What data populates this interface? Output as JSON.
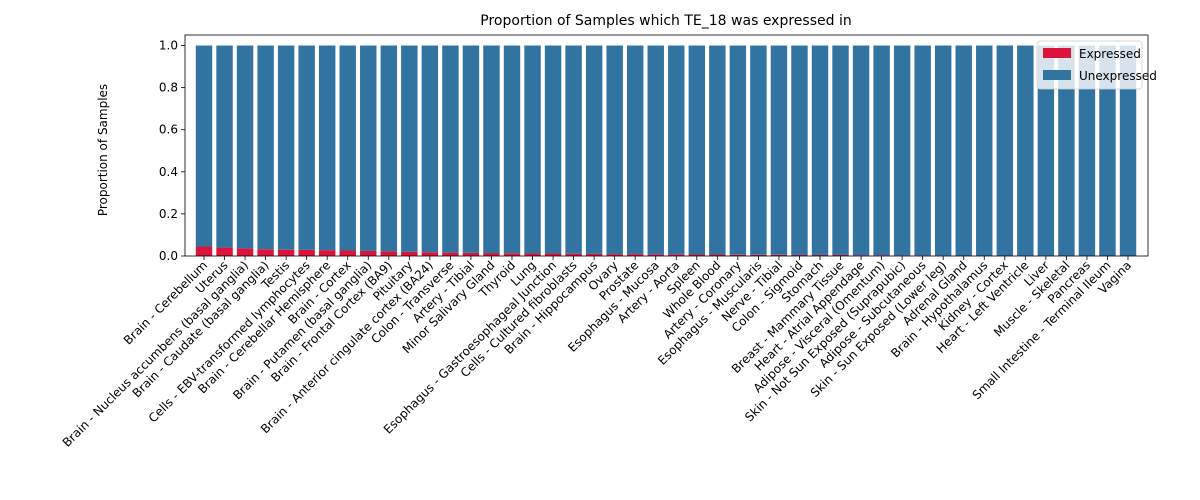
{
  "chart_data": {
    "type": "bar",
    "stacked": true,
    "title": "Proportion of Samples which TE_18 was expressed in",
    "xlabel": "",
    "ylabel": "Proportion of Samples",
    "ylim": [
      0,
      1.05
    ],
    "yticks": [
      "0.0",
      "0.2",
      "0.4",
      "0.6",
      "0.8",
      "1.0"
    ],
    "grid": false,
    "legend_position": "top-right",
    "categories": [
      "Brain - Cerebellum",
      "Uterus",
      "Brain - Nucleus accumbens (basal ganglia)",
      "Brain - Caudate (basal ganglia)",
      "Testis",
      "Cells - EBV-transformed lymphocytes",
      "Brain - Cerebellar Hemisphere",
      "Brain - Cortex",
      "Brain - Putamen (basal ganglia)",
      "Brain - Frontal Cortex (BA9)",
      "Pituitary",
      "Brain - Anterior cingulate cortex (BA24)",
      "Colon - Transverse",
      "Artery - Tibial",
      "Minor Salivary Gland",
      "Thyroid",
      "Lung",
      "Esophagus - Gastroesophageal Junction",
      "Cells - Cultured fibroblasts",
      "Brain - Hippocampus",
      "Ovary",
      "Prostate",
      "Esophagus - Mucosa",
      "Artery - Aorta",
      "Spleen",
      "Whole Blood",
      "Artery - Coronary",
      "Esophagus - Muscularis",
      "Nerve - Tibial",
      "Colon - Sigmoid",
      "Stomach",
      "Breast - Mammary Tissue",
      "Heart - Atrial Appendage",
      "Adipose - Visceral (Omentum)",
      "Skin - Not Sun Exposed (Suprapubic)",
      "Adipose - Subcutaneous",
      "Skin - Sun Exposed (Lower leg)",
      "Adrenal Gland",
      "Brain - Hypothalamus",
      "Kidney - Cortex",
      "Heart - Left Ventricle",
      "Liver",
      "Muscle - Skeletal",
      "Pancreas",
      "Small Intestine - Terminal Ileum",
      "Vagina"
    ],
    "series": [
      {
        "name": "Expressed",
        "color": "#dc143c",
        "values": [
          0.045,
          0.04,
          0.036,
          0.032,
          0.03,
          0.029,
          0.028,
          0.026,
          0.024,
          0.022,
          0.02,
          0.018,
          0.016,
          0.015,
          0.014,
          0.013,
          0.012,
          0.012,
          0.011,
          0.01,
          0.009,
          0.009,
          0.008,
          0.008,
          0.007,
          0.007,
          0.006,
          0.006,
          0.006,
          0.005,
          0.005,
          0.005,
          0.004,
          0.004,
          0.003,
          0.003,
          0.003,
          0.002,
          0.002,
          0.002,
          0.001,
          0.001,
          0.001,
          0.0,
          0.0,
          0.0
        ]
      },
      {
        "name": "Unexpressed",
        "color": "#3274a1",
        "values": [
          0.955,
          0.96,
          0.964,
          0.968,
          0.97,
          0.971,
          0.972,
          0.974,
          0.976,
          0.978,
          0.98,
          0.982,
          0.984,
          0.985,
          0.986,
          0.987,
          0.988,
          0.988,
          0.989,
          0.99,
          0.991,
          0.991,
          0.992,
          0.992,
          0.993,
          0.993,
          0.994,
          0.994,
          0.994,
          0.995,
          0.995,
          0.995,
          0.996,
          0.996,
          0.997,
          0.997,
          0.997,
          0.998,
          0.998,
          0.998,
          0.999,
          0.999,
          0.999,
          1.0,
          1.0,
          1.0
        ]
      }
    ]
  }
}
